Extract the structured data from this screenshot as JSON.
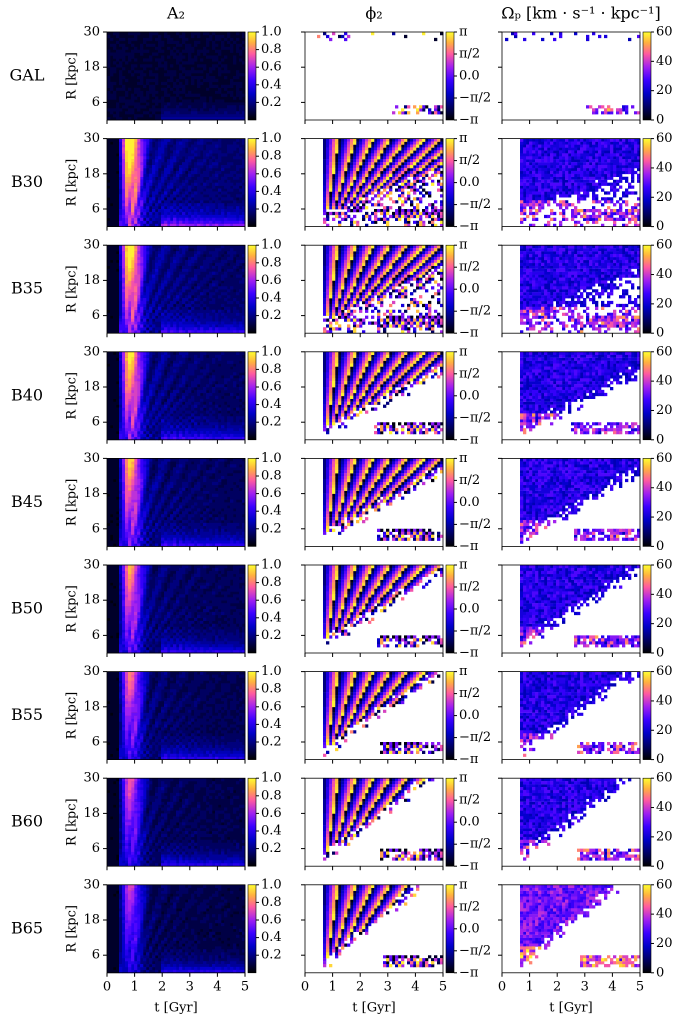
{
  "chart_data": {
    "type": "heatmap-grid",
    "xlabel": "t [Gyr]",
    "ylabel": "R [kpc]",
    "xlim": [
      0,
      5
    ],
    "xticks": [
      0,
      1,
      2,
      3,
      4,
      5
    ],
    "ylim": [
      0,
      30
    ],
    "yticks": [
      6,
      18,
      30
    ],
    "row_labels": [
      "GAL",
      "B30",
      "B35",
      "B40",
      "B45",
      "B50",
      "B55",
      "B60",
      "B65"
    ],
    "columns": [
      {
        "title": "A₂",
        "clim": [
          0,
          1
        ],
        "cticks": [
          0.2,
          0.4,
          0.6,
          0.8,
          {
            "value": 1,
            "label": "1.0"
          }
        ]
      },
      {
        "title": "ϕ₂",
        "clim": [
          -3.14159,
          3.14159
        ],
        "cticks": [
          {
            "value": -3.14159,
            "label": "−π"
          },
          {
            "value": -1.5708,
            "label": "−π/2"
          },
          {
            "value": 0,
            "label": "0.0"
          },
          {
            "value": 1.5708,
            "label": "π/2"
          },
          {
            "value": 3.14159,
            "label": "π"
          }
        ]
      },
      {
        "title": "Ωₚ [km · s⁻¹ · kpc⁻¹]",
        "clim": [
          0,
          60
        ],
        "cticks": [
          0,
          20,
          40,
          60
        ]
      }
    ]
  }
}
